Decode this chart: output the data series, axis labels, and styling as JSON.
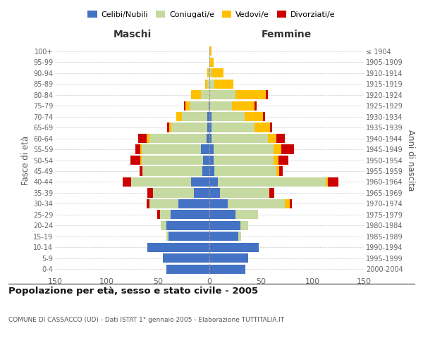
{
  "age_groups": [
    "0-4",
    "5-9",
    "10-14",
    "15-19",
    "20-24",
    "25-29",
    "30-34",
    "35-39",
    "40-44",
    "45-49",
    "50-54",
    "55-59",
    "60-64",
    "65-69",
    "70-74",
    "75-79",
    "80-84",
    "85-89",
    "90-94",
    "95-99",
    "100+"
  ],
  "birth_years": [
    "2000-2004",
    "1995-1999",
    "1990-1994",
    "1985-1989",
    "1980-1984",
    "1975-1979",
    "1970-1974",
    "1965-1969",
    "1960-1964",
    "1955-1959",
    "1950-1954",
    "1945-1949",
    "1940-1944",
    "1935-1939",
    "1930-1934",
    "1925-1929",
    "1920-1924",
    "1915-1919",
    "1910-1914",
    "1905-1909",
    "≤ 1904"
  ],
  "maschi_celibi": [
    42,
    45,
    60,
    40,
    42,
    38,
    30,
    15,
    18,
    7,
    6,
    8,
    3,
    2,
    2,
    1,
    0,
    0,
    0,
    0,
    0
  ],
  "maschi_coniugati": [
    0,
    0,
    0,
    2,
    5,
    10,
    28,
    40,
    58,
    58,
    60,
    58,
    55,
    35,
    25,
    18,
    8,
    2,
    1,
    0,
    0
  ],
  "maschi_vedovi": [
    0,
    0,
    0,
    0,
    0,
    0,
    0,
    0,
    0,
    0,
    1,
    1,
    3,
    2,
    5,
    4,
    10,
    2,
    1,
    0,
    0
  ],
  "maschi_divorziati": [
    0,
    0,
    0,
    0,
    0,
    3,
    3,
    5,
    8,
    3,
    10,
    5,
    8,
    2,
    0,
    2,
    0,
    0,
    0,
    0,
    0
  ],
  "femmine_celibi": [
    35,
    38,
    48,
    28,
    30,
    25,
    18,
    10,
    8,
    5,
    4,
    4,
    2,
    2,
    2,
    0,
    0,
    0,
    0,
    0,
    0
  ],
  "femmine_coniugati": [
    0,
    0,
    0,
    3,
    8,
    22,
    55,
    48,
    105,
    60,
    58,
    58,
    55,
    42,
    32,
    22,
    25,
    5,
    2,
    0,
    0
  ],
  "femmine_vedovi": [
    0,
    0,
    0,
    0,
    0,
    0,
    5,
    0,
    2,
    3,
    5,
    8,
    8,
    15,
    18,
    22,
    30,
    18,
    12,
    4,
    2
  ],
  "femmine_divorziati": [
    0,
    0,
    0,
    0,
    0,
    0,
    2,
    5,
    10,
    3,
    10,
    12,
    8,
    2,
    2,
    2,
    2,
    0,
    0,
    0,
    0
  ],
  "colors": {
    "celibi": "#4472C4",
    "coniugati": "#C6D9A0",
    "vedovi": "#FFC000",
    "divorziati": "#CC0000"
  },
  "title": "Popolazione per età, sesso e stato civile - 2005",
  "subtitle": "COMUNE DI CASSACCO (UD) - Dati ISTAT 1° gennaio 2005 - Elaborazione TUTTITALIA.IT",
  "xlabel_maschi": "Maschi",
  "xlabel_femmine": "Femmine",
  "ylabel_left": "Fasce di età",
  "ylabel_right": "Anni di nascita",
  "xlim": 150,
  "bg_color": "#ffffff",
  "grid_color": "#cccccc"
}
